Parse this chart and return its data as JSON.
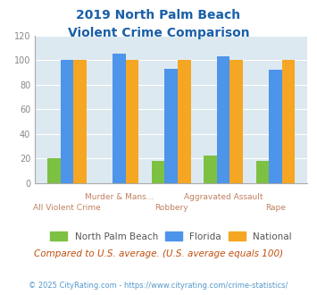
{
  "title_line1": "2019 North Palm Beach",
  "title_line2": "Violent Crime Comparison",
  "categories": [
    "All Violent Crime",
    "Murder & Mans...",
    "Robbery",
    "Aggravated Assault",
    "Rape"
  ],
  "npb_values": [
    20,
    0,
    18,
    22,
    18
  ],
  "florida_values": [
    100,
    105,
    93,
    103,
    92
  ],
  "national_values": [
    100,
    100,
    100,
    100,
    100
  ],
  "npb_color": "#7dc142",
  "florida_color": "#4d94eb",
  "national_color": "#f5a623",
  "ylim": [
    0,
    120
  ],
  "yticks": [
    0,
    20,
    40,
    60,
    80,
    100,
    120
  ],
  "plot_bg_color": "#dce9f0",
  "title_color": "#1a5fa8",
  "subtitle_note": "Compared to U.S. average. (U.S. average equals 100)",
  "footer": "© 2025 CityRating.com - https://www.cityrating.com/crime-statistics/",
  "legend_labels": [
    "North Palm Beach",
    "Florida",
    "National"
  ],
  "bar_width": 0.25,
  "top_labels": [
    "",
    "Murder & Mans...",
    "",
    "Aggravated Assault",
    ""
  ],
  "bot_labels": [
    "All Violent Crime",
    "",
    "Robbery",
    "",
    "Rape"
  ],
  "label_color": "#c08060",
  "subtitle_color": "#c05010",
  "footer_color": "#5599cc",
  "grid_color": "white",
  "ytick_color": "#888888"
}
